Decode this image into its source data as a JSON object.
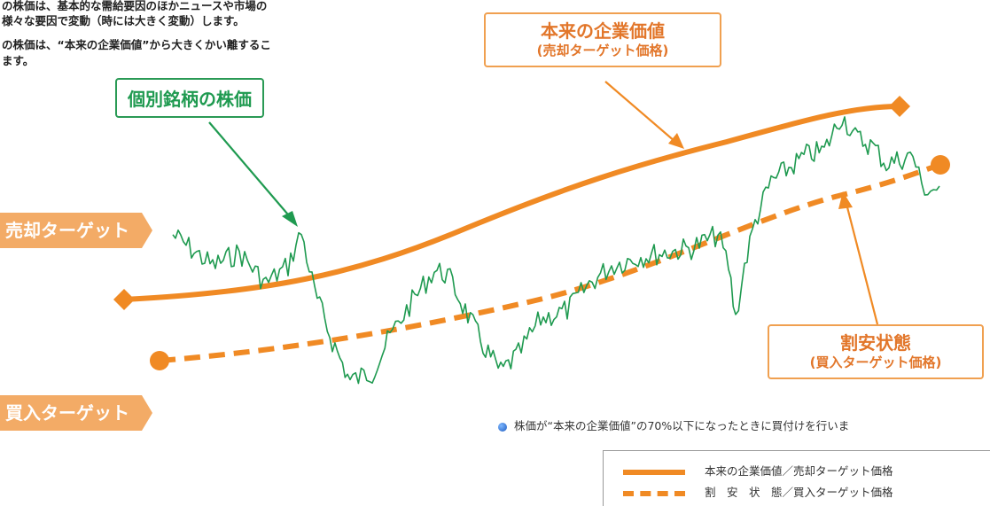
{
  "intro_lines": [
    "の株価は、基本的な需給要因のほかニュースや市場の",
    "様々な要因で変動（時には大きく変動）します。",
    "の株価は、“本来の企業価値”から大きくかい離するこ",
    "ます。"
  ],
  "callouts": {
    "stock_price": "個別銘柄の株価",
    "intrinsic_title": "本来の企業価値",
    "intrinsic_sub": "(売却ターゲット価格)",
    "undervalued_title": "割安状態",
    "undervalued_sub": "(買入ターゲット価格)"
  },
  "side_labels": {
    "sell": "売却ターゲット",
    "buy": "買入ターゲット"
  },
  "note": "株価が“本来の企業価値”の70%以下になったときに買付けを行いま",
  "legend": [
    {
      "label": "本来の企業価値／売却ターゲット価格",
      "style": "solid"
    },
    {
      "label": "割　安　状　態／買入ターゲット価格",
      "style": "dashed"
    }
  ],
  "colors": {
    "orange": "#f08a24",
    "green": "#1f9a50",
    "label_orange": "#f3ab66",
    "note_dot": "#2a6fd6"
  }
}
